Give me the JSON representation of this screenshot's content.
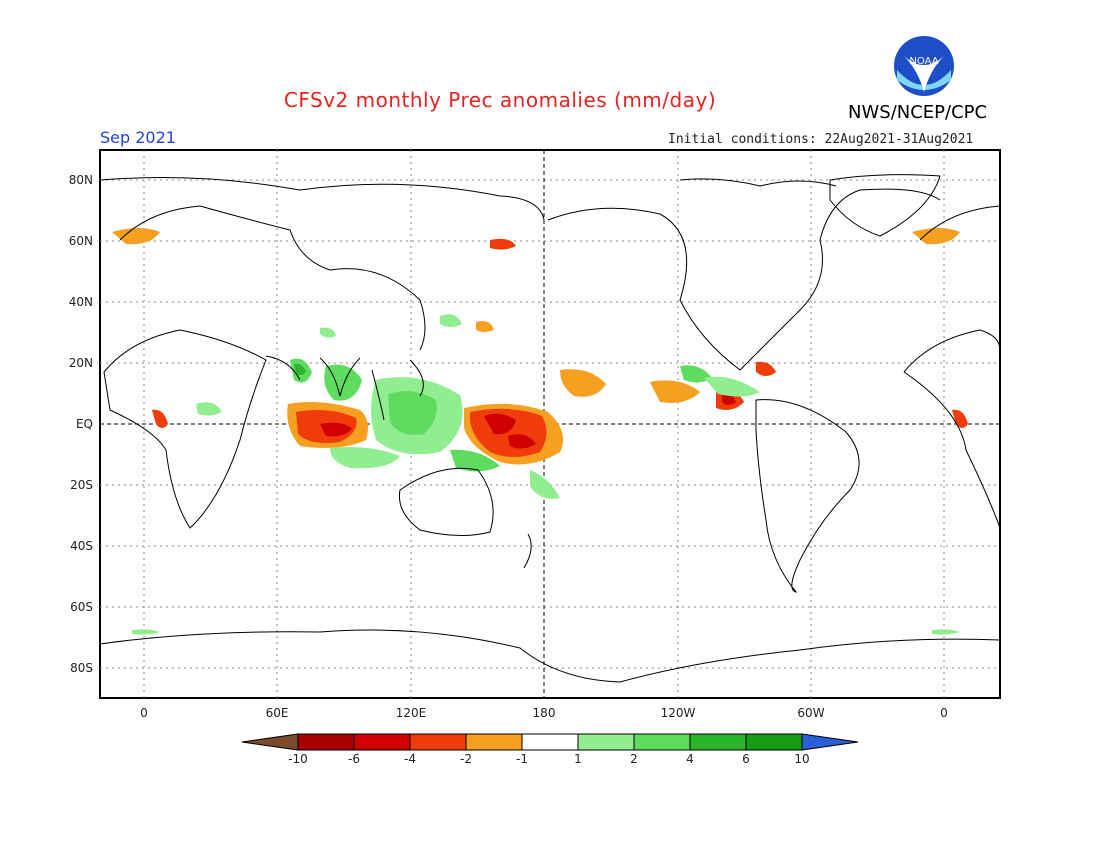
{
  "header": {
    "title": "CFSv2 monthly Prec anomalies (mm/day)",
    "agency": "NWS/NCEP/CPC",
    "month": "Sep 2021",
    "initial_conditions": "Initial conditions: 22Aug2021-31Aug2021"
  },
  "logo": {
    "text": "NOAA"
  },
  "map": {
    "lat_labels": [
      "80N",
      "60N",
      "40N",
      "20N",
      "EQ",
      "20S",
      "40S",
      "60S",
      "80S"
    ],
    "lon_labels": [
      "0",
      "60E",
      "120E",
      "180",
      "120W",
      "60W",
      "0"
    ]
  },
  "colorbar": {
    "ticks": [
      "-10",
      "-6",
      "-4",
      "-2",
      "-1",
      "1",
      "2",
      "4",
      "6",
      "10"
    ],
    "colors": [
      "#7a4a2a",
      "#a80000",
      "#d00000",
      "#f03c0a",
      "#f5a020",
      "#ffffff",
      "#90ee90",
      "#5fdc5f",
      "#2db42d",
      "#169b16",
      "#2b5fd8"
    ]
  }
}
